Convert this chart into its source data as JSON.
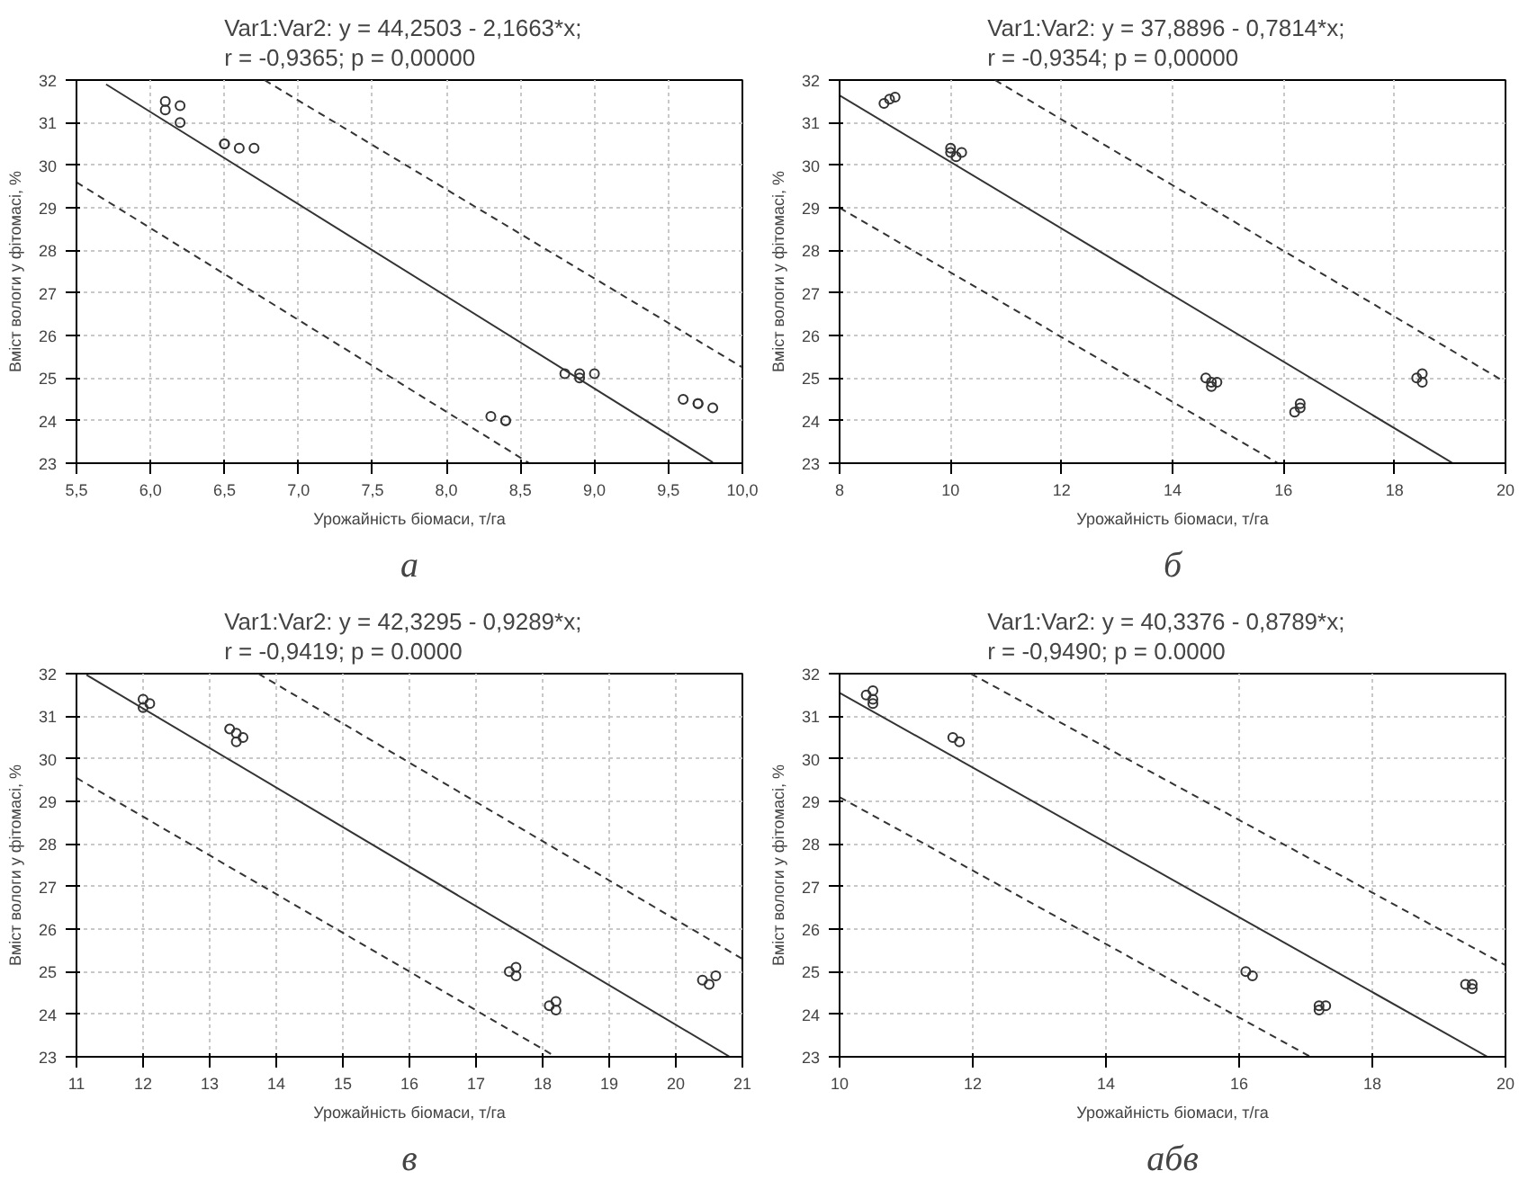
{
  "chart_data": [
    {
      "type": "scatter",
      "title": "Var1:Var2:   y = 44,2503 - 2,1663*x;\nr = -0,9365; p = 0,00000",
      "xlabel": "Урожайність біомаси, т/га",
      "ylabel": "Вміст вологи у фітомасі, %",
      "annotations": [
        "а"
      ],
      "grid": true,
      "xlim": [
        5.5,
        10.0
      ],
      "ylim": [
        23,
        32
      ],
      "xticks": [
        {
          "value": 5.5,
          "label": "5,5"
        },
        {
          "value": 6.0,
          "label": "6,0"
        },
        {
          "value": 6.5,
          "label": "6,5"
        },
        {
          "value": 7.0,
          "label": "7,0"
        },
        {
          "value": 7.5,
          "label": "7,5"
        },
        {
          "value": 8.0,
          "label": "8,0"
        },
        {
          "value": 8.5,
          "label": "8,5"
        },
        {
          "value": 9.0,
          "label": "9,0"
        },
        {
          "value": 9.5,
          "label": "9,5"
        },
        {
          "value": 10.0,
          "label": "10,0"
        }
      ],
      "yticks": [
        23,
        24,
        25,
        26,
        27,
        28,
        29,
        30,
        31,
        32
      ],
      "series": [
        {
          "marker": "circle",
          "color": "#333333",
          "x": [
            6.1,
            6.1,
            6.2,
            6.2,
            6.5,
            6.5,
            6.6,
            6.7,
            8.8,
            8.9,
            8.9,
            9.0,
            8.3,
            8.4,
            8.4,
            9.6,
            9.7,
            9.7,
            9.8
          ],
          "values": [
            31.5,
            31.3,
            31.4,
            31.0,
            30.5,
            30.5,
            30.4,
            30.4,
            25.1,
            25.1,
            25.0,
            25.1,
            24.1,
            24.0,
            24.0,
            24.5,
            24.4,
            24.4,
            24.3
          ]
        },
        {
          "type": "line",
          "color": "#333333",
          "line_style": "solid",
          "x": [
            5.7,
            9.8
          ],
          "values": [
            31.9,
            23.02
          ]
        },
        {
          "type": "line",
          "color": "#333333",
          "line_style": "dashed",
          "x": [
            6.77,
            10.0
          ],
          "values": [
            32.0,
            25.25
          ]
        },
        {
          "type": "line",
          "color": "#333333",
          "line_style": "dashed",
          "x": [
            5.5,
            8.56
          ],
          "values": [
            29.6,
            23.0
          ]
        }
      ]
    },
    {
      "type": "scatter",
      "title": "Var1:Var2:   y = 37,8896 - 0,7814*x;\nr = -0,9354; p = 0,00000",
      "xlabel": "Урожайність біомаси, т/га",
      "ylabel": "Вміст вологи у фітомасі, %",
      "annotations": [
        "б"
      ],
      "grid": true,
      "xlim": [
        8,
        20
      ],
      "ylim": [
        23,
        32
      ],
      "xticks": [
        8,
        10,
        12,
        14,
        16,
        18,
        20
      ],
      "yticks": [
        23,
        24,
        25,
        26,
        27,
        28,
        29,
        30,
        31,
        32
      ],
      "series": [
        {
          "marker": "circle",
          "color": "#333333",
          "x": [
            8.8,
            8.9,
            9.0,
            10.0,
            10.0,
            10.1,
            10.2,
            14.6,
            14.7,
            14.7,
            14.8,
            16.2,
            16.3,
            16.3,
            18.4,
            18.5,
            18.5
          ],
          "values": [
            31.45,
            31.55,
            31.6,
            30.4,
            30.3,
            30.2,
            30.3,
            25.0,
            24.9,
            24.8,
            24.9,
            24.2,
            24.4,
            24.3,
            25.0,
            25.1,
            24.9
          ]
        },
        {
          "type": "line",
          "color": "#333333",
          "line_style": "solid",
          "x": [
            8.0,
            19.05
          ],
          "values": [
            31.64,
            23.0
          ]
        },
        {
          "type": "line",
          "color": "#333333",
          "line_style": "dashed",
          "x": [
            10.8,
            20.0
          ],
          "values": [
            32.0,
            24.9
          ]
        },
        {
          "type": "line",
          "color": "#333333",
          "line_style": "dashed",
          "x": [
            8.0,
            15.9
          ],
          "values": [
            29.0,
            23.0
          ]
        }
      ]
    },
    {
      "type": "scatter",
      "title": "Var1:Var2:   y = 42,3295 - 0,9289*x;\nr = -0,9419; p = 0.0000",
      "xlabel": "Урожайність біомаси, т/га",
      "ylabel": "Вміст вологи у фітомасі, %",
      "annotations": [
        "в"
      ],
      "grid": true,
      "xlim": [
        11,
        21
      ],
      "ylim": [
        23,
        32
      ],
      "xticks": [
        11,
        12,
        13,
        14,
        15,
        16,
        17,
        18,
        19,
        20,
        21
      ],
      "yticks": [
        23,
        24,
        25,
        26,
        27,
        28,
        29,
        30,
        31,
        32
      ],
      "series": [
        {
          "marker": "circle",
          "color": "#333333",
          "x": [
            12.0,
            12.0,
            12.1,
            13.3,
            13.4,
            13.4,
            13.5,
            17.5,
            17.6,
            17.6,
            18.1,
            18.2,
            18.2,
            20.4,
            20.5,
            20.6
          ],
          "values": [
            31.4,
            31.2,
            31.3,
            30.7,
            30.6,
            30.4,
            30.5,
            25.0,
            25.1,
            24.9,
            24.2,
            24.3,
            24.1,
            24.8,
            24.7,
            24.9
          ]
        },
        {
          "type": "line",
          "color": "#333333",
          "line_style": "solid",
          "x": [
            11.15,
            20.8
          ],
          "values": [
            31.97,
            23.01
          ]
        },
        {
          "type": "line",
          "color": "#333333",
          "line_style": "dashed",
          "x": [
            13.73,
            21.0
          ],
          "values": [
            32.0,
            25.3
          ]
        },
        {
          "type": "line",
          "color": "#333333",
          "line_style": "dashed",
          "x": [
            11.0,
            18.2
          ],
          "values": [
            29.55,
            23.0
          ]
        }
      ]
    },
    {
      "type": "scatter",
      "title": "Var1:Var2:   y = 40,3376 - 0,8789*x;\nr = -0,9490; p = 0.0000",
      "xlabel": "Урожайність біомаси, т/га",
      "ylabel": "Вміст вологи у фітомасі, %",
      "annotations": [
        "абв"
      ],
      "grid": true,
      "xlim": [
        10,
        20
      ],
      "ylim": [
        23,
        32
      ],
      "xticks": [
        10,
        12,
        14,
        16,
        18,
        20
      ],
      "yticks": [
        23,
        24,
        25,
        26,
        27,
        28,
        29,
        30,
        31,
        32
      ],
      "series": [
        {
          "marker": "circle",
          "color": "#333333",
          "x": [
            10.4,
            10.5,
            10.5,
            10.5,
            11.7,
            11.8,
            16.1,
            16.2,
            17.2,
            17.3,
            17.2,
            19.4,
            19.5,
            19.5
          ],
          "values": [
            31.5,
            31.6,
            31.4,
            31.3,
            30.5,
            30.4,
            25.0,
            24.9,
            24.2,
            24.2,
            24.1,
            24.7,
            24.7,
            24.6
          ]
        },
        {
          "type": "line",
          "color": "#333333",
          "line_style": "solid",
          "x": [
            10.0,
            19.73
          ],
          "values": [
            31.55,
            23.0
          ]
        },
        {
          "type": "line",
          "color": "#333333",
          "line_style": "dashed",
          "x": [
            11.97,
            20.0
          ],
          "values": [
            32.0,
            25.15
          ]
        },
        {
          "type": "line",
          "color": "#333333",
          "line_style": "dashed",
          "x": [
            10.0,
            17.07
          ],
          "values": [
            29.1,
            23.0
          ]
        }
      ]
    }
  ]
}
